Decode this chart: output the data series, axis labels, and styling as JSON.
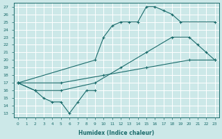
{
  "xlabel": "Humidex (Indice chaleur)",
  "ylabel": "",
  "xlim": [
    -0.5,
    23.5
  ],
  "ylim": [
    12.5,
    27.5
  ],
  "xticks": [
    0,
    1,
    2,
    3,
    4,
    5,
    6,
    7,
    8,
    9,
    10,
    11,
    12,
    13,
    14,
    15,
    16,
    17,
    18,
    19,
    20,
    21,
    22,
    23
  ],
  "yticks": [
    13,
    14,
    15,
    16,
    17,
    18,
    19,
    20,
    21,
    22,
    23,
    24,
    25,
    26,
    27
  ],
  "bg_color": "#cce8e8",
  "line_color": "#1a6b6b",
  "grid_color": "#ffffff",
  "line1_x": [
    0,
    9,
    10,
    11,
    12,
    13,
    14,
    15,
    16,
    17,
    18,
    19,
    23
  ],
  "line1_y": [
    17,
    20,
    23,
    24.5,
    25,
    25,
    25,
    27,
    27,
    26.5,
    26,
    25,
    25
  ],
  "line2_x": [
    0,
    2,
    5,
    9,
    12,
    15,
    18,
    20,
    21,
    22,
    23
  ],
  "line2_y": [
    17,
    16,
    16,
    17,
    19,
    21,
    23,
    23,
    22,
    21,
    20
  ],
  "line3_x": [
    0,
    2,
    3,
    4,
    5,
    6,
    7,
    8,
    9
  ],
  "line3_y": [
    17,
    16,
    15,
    14.5,
    14.5,
    13,
    14.5,
    16,
    16
  ],
  "line4_x": [
    0,
    5,
    10,
    15,
    20,
    23
  ],
  "line4_y": [
    17,
    17,
    18,
    19,
    20,
    20
  ]
}
